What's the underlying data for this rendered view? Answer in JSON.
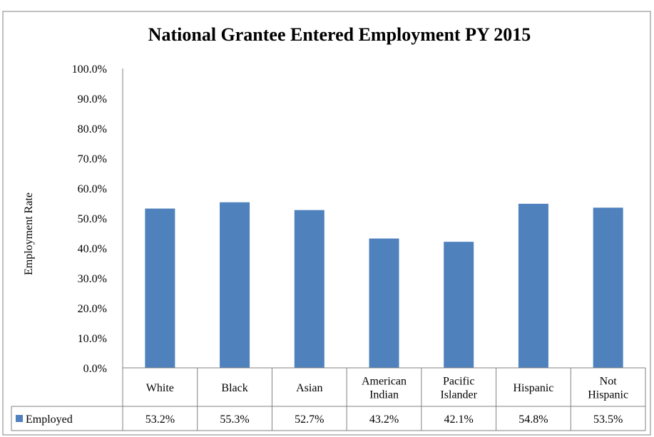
{
  "chart_data": {
    "type": "bar",
    "title": "National Grantee Entered Employment PY 2015",
    "xlabel": "",
    "ylabel": "Employment Rate",
    "ylim": [
      0,
      100
    ],
    "yticks": [
      "0.0%",
      "10.0%",
      "20.0%",
      "30.0%",
      "40.0%",
      "50.0%",
      "60.0%",
      "70.0%",
      "80.0%",
      "90.0%",
      "100.0%"
    ],
    "categories": [
      [
        "White"
      ],
      [
        "Black"
      ],
      [
        "Asian"
      ],
      [
        "American",
        "Indian"
      ],
      [
        "Pacific",
        "Islander"
      ],
      [
        "Hispanic"
      ],
      [
        "Not",
        "Hispanic"
      ]
    ],
    "series": [
      {
        "name": "Employed",
        "color": "#4F81BD",
        "values": [
          53.2,
          55.3,
          52.7,
          43.2,
          42.1,
          54.8,
          53.5
        ],
        "value_labels": [
          "53.2%",
          "55.3%",
          "52.7%",
          "43.2%",
          "42.1%",
          "54.8%",
          "53.5%"
        ]
      }
    ],
    "grid": false,
    "legend": "data-table"
  }
}
